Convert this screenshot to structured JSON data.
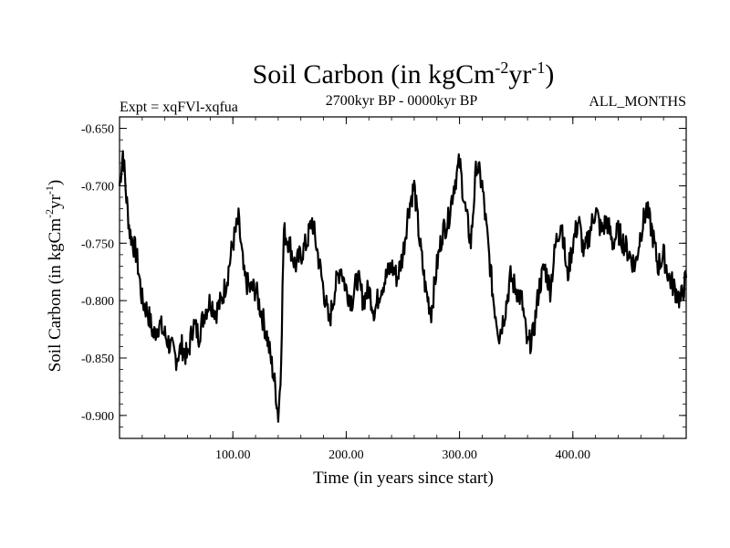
{
  "chart_data": {
    "type": "line",
    "title": "Soil Carbon (in kgCm",
    "title_sup1": "-2",
    "title_mid": "yr",
    "title_sup2": "-1",
    "title_end": ")",
    "subtitle": "2700kyr BP - 0000kyr BP",
    "left_annotation": "Expt = xqFVl-xqfua",
    "right_annotation": "ALL_MONTHS",
    "xlabel": "Time (in years since start)",
    "ylabel": "Soil Carbon (in kgCm",
    "ylabel_sup1": "-2",
    "ylabel_mid": "yr",
    "ylabel_sup2": "-1",
    "ylabel_end": ")",
    "xlim": [
      0,
      500
    ],
    "ylim": [
      -0.92,
      -0.64
    ],
    "xticks": [
      100,
      200,
      300,
      400
    ],
    "xtick_labels": [
      "100.00",
      "200.00",
      "300.00",
      "400.00"
    ],
    "yticks": [
      -0.65,
      -0.7,
      -0.75,
      -0.8,
      -0.85,
      -0.9
    ],
    "ytick_labels": [
      "-0.650",
      "-0.700",
      "-0.750",
      "-0.800",
      "-0.850",
      "-0.900"
    ],
    "series": [
      {
        "name": "Soil Carbon",
        "color": "#000000",
        "x": [
          0,
          3,
          6,
          9,
          12,
          15,
          20,
          25,
          30,
          35,
          40,
          45,
          50,
          55,
          60,
          65,
          70,
          75,
          80,
          85,
          90,
          95,
          100,
          105,
          110,
          115,
          120,
          125,
          130,
          135,
          138,
          140,
          142,
          145,
          150,
          155,
          160,
          165,
          170,
          175,
          180,
          185,
          190,
          195,
          200,
          205,
          210,
          215,
          220,
          225,
          230,
          235,
          240,
          245,
          250,
          255,
          260,
          265,
          270,
          275,
          280,
          285,
          290,
          295,
          300,
          305,
          310,
          315,
          320,
          325,
          330,
          335,
          340,
          345,
          350,
          355,
          360,
          365,
          370,
          375,
          380,
          385,
          390,
          395,
          400,
          405,
          410,
          415,
          420,
          425,
          430,
          435,
          440,
          445,
          450,
          455,
          460,
          465,
          470,
          475,
          480,
          485,
          490,
          495,
          500
        ],
        "y": [
          -0.7,
          -0.67,
          -0.71,
          -0.74,
          -0.75,
          -0.76,
          -0.8,
          -0.81,
          -0.83,
          -0.82,
          -0.83,
          -0.84,
          -0.85,
          -0.84,
          -0.85,
          -0.82,
          -0.83,
          -0.81,
          -0.8,
          -0.81,
          -0.8,
          -0.78,
          -0.75,
          -0.73,
          -0.78,
          -0.79,
          -0.79,
          -0.81,
          -0.83,
          -0.86,
          -0.88,
          -0.9,
          -0.87,
          -0.74,
          -0.75,
          -0.77,
          -0.76,
          -0.75,
          -0.73,
          -0.76,
          -0.79,
          -0.82,
          -0.79,
          -0.77,
          -0.79,
          -0.8,
          -0.78,
          -0.8,
          -0.79,
          -0.81,
          -0.79,
          -0.78,
          -0.77,
          -0.78,
          -0.76,
          -0.72,
          -0.7,
          -0.75,
          -0.79,
          -0.81,
          -0.77,
          -0.74,
          -0.73,
          -0.7,
          -0.68,
          -0.72,
          -0.75,
          -0.68,
          -0.7,
          -0.75,
          -0.8,
          -0.83,
          -0.81,
          -0.78,
          -0.79,
          -0.8,
          -0.84,
          -0.83,
          -0.79,
          -0.77,
          -0.79,
          -0.75,
          -0.73,
          -0.78,
          -0.75,
          -0.73,
          -0.76,
          -0.74,
          -0.72,
          -0.74,
          -0.73,
          -0.75,
          -0.74,
          -0.75,
          -0.76,
          -0.77,
          -0.74,
          -0.72,
          -0.74,
          -0.77,
          -0.76,
          -0.78,
          -0.79,
          -0.8,
          -0.78
        ]
      }
    ]
  }
}
